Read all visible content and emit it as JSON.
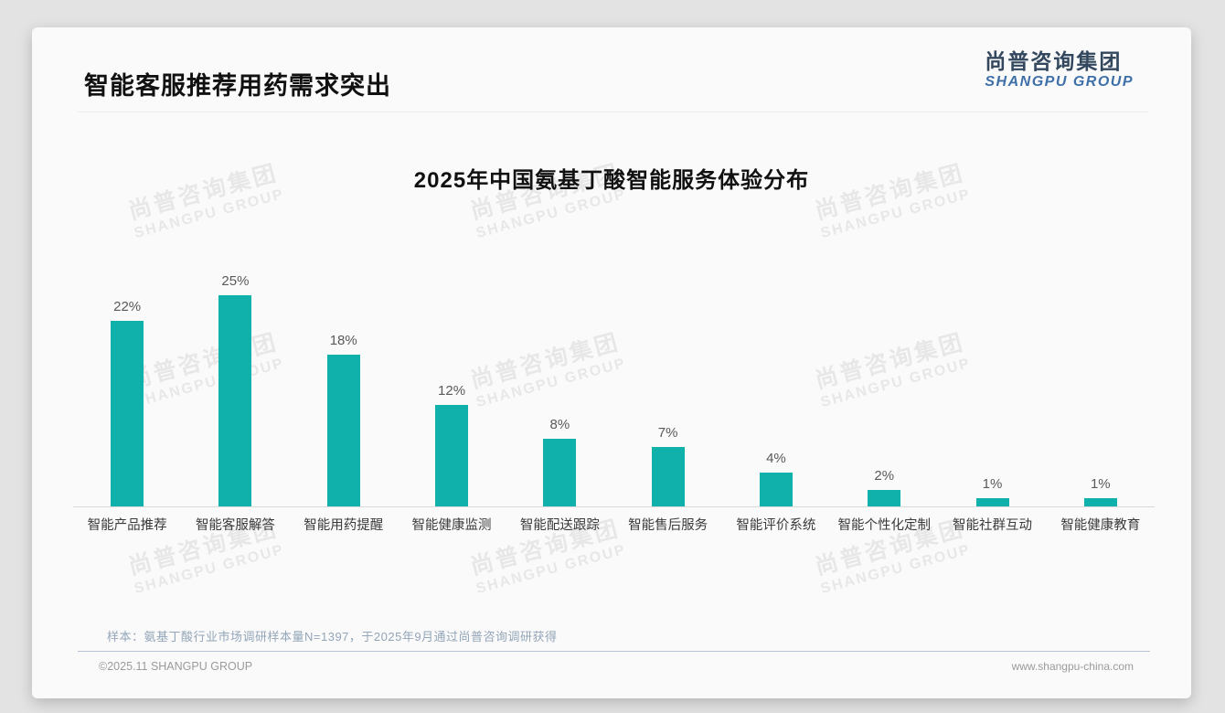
{
  "page": {
    "title": "智能客服推荐用药需求突出",
    "logo": {
      "cn": "尚普咨询集团",
      "en": "SHANGPU GROUP"
    },
    "watermark": {
      "line1": "尚普咨询集团",
      "line2": "SHANGPU GROUP"
    },
    "footer": {
      "sample_note": "样本：氨基丁酸行业市场调研样本量N=1397，于2025年9月通过尚普咨询调研获得",
      "copyright": "©2025.11 SHANGPU GROUP",
      "website": "www.shangpu-china.com"
    },
    "colors": {
      "bar": "#10b1aa",
      "logo_cn": "#33485e",
      "logo_en": "#3e6fa8"
    }
  },
  "chart_data": {
    "type": "bar",
    "title": "2025年中国氨基丁酸智能服务体验分布",
    "categories": [
      "智能产品推荐",
      "智能客服解答",
      "智能用药提醒",
      "智能健康监测",
      "智能配送跟踪",
      "智能售后服务",
      "智能评价系统",
      "智能个性化定制",
      "智能社群互动",
      "智能健康教育"
    ],
    "values": [
      22,
      25,
      18,
      12,
      8,
      7,
      4,
      2,
      1,
      1
    ],
    "unit": "%",
    "xlabel": "",
    "ylabel": "",
    "ylim": [
      0,
      25
    ],
    "grid": false,
    "legend": false,
    "value_labels_shown": true
  }
}
